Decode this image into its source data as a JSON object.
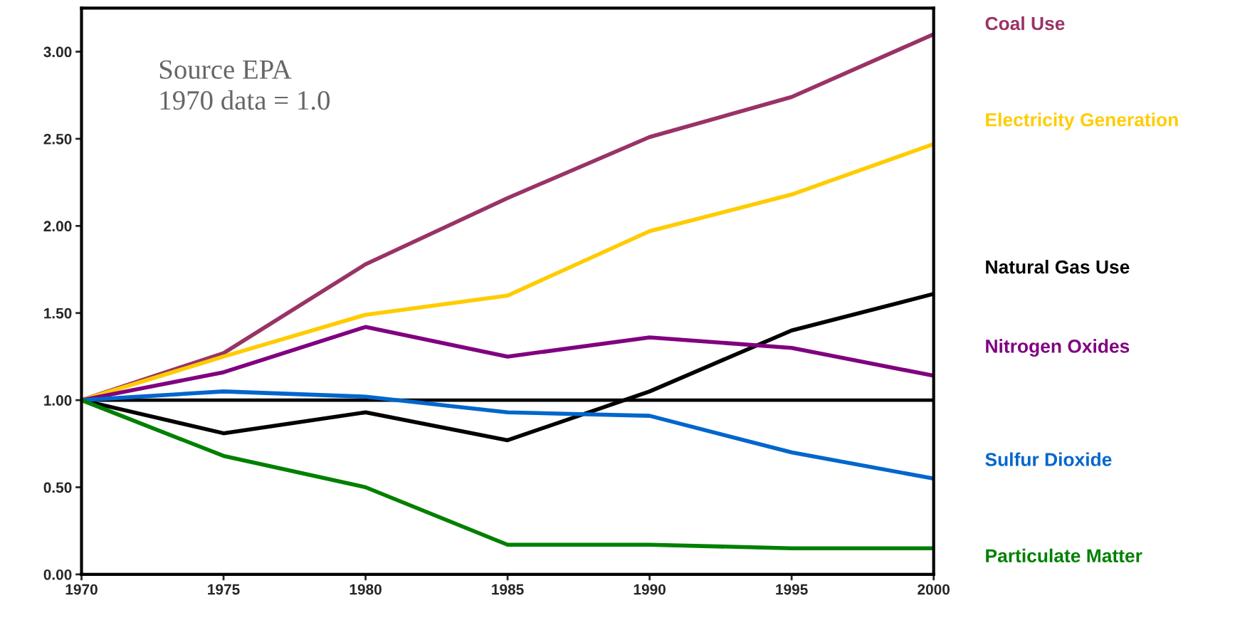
{
  "chart_data": {
    "type": "line",
    "x": [
      1970,
      1975,
      1980,
      1985,
      1990,
      1995,
      2000
    ],
    "series": [
      {
        "name": "Coal Use",
        "color": "#993366",
        "values": [
          1.0,
          1.27,
          1.78,
          2.16,
          2.51,
          2.74,
          3.1
        ]
      },
      {
        "name": "Electricity Generation",
        "color": "#ffcc00",
        "values": [
          1.0,
          1.25,
          1.49,
          1.6,
          1.97,
          2.18,
          2.47
        ]
      },
      {
        "name": "Natural Gas Use",
        "color": "#000000",
        "values": [
          1.0,
          0.81,
          0.93,
          0.77,
          1.05,
          1.4,
          1.61
        ]
      },
      {
        "name": "Nitrogen Oxides",
        "color": "#800080",
        "values": [
          1.0,
          1.16,
          1.42,
          1.25,
          1.36,
          1.3,
          1.14
        ]
      },
      {
        "name": "Sulfur Dioxide",
        "color": "#0066cc",
        "values": [
          1.0,
          1.05,
          1.02,
          0.93,
          0.91,
          0.7,
          0.55
        ]
      },
      {
        "name": "Particulate Matter",
        "color": "#008000",
        "values": [
          1.0,
          0.68,
          0.5,
          0.17,
          0.17,
          0.15,
          0.15
        ]
      }
    ],
    "xlim": [
      1970,
      2000
    ],
    "xticks": [
      1970,
      1975,
      1980,
      1985,
      1990,
      1995,
      2000
    ],
    "ylim": [
      0,
      3.25
    ],
    "yticks": [
      {
        "value": 0,
        "label": "0.00"
      },
      {
        "value": 0.5,
        "label": "0.50"
      },
      {
        "value": 1,
        "label": "1.00"
      },
      {
        "value": 1.5,
        "label": "1.50"
      },
      {
        "value": 2,
        "label": "2.00"
      },
      {
        "value": 2.5,
        "label": "2.50"
      },
      {
        "value": 3,
        "label": "3.00"
      }
    ],
    "ref_lines": [
      {
        "axis": "y",
        "value": 1,
        "color": "#000000"
      }
    ],
    "annotations": [
      "Source EPA\n1970 data = 1.0"
    ],
    "grid": false,
    "legend": "right",
    "marker": "none",
    "line_style": "solid"
  }
}
